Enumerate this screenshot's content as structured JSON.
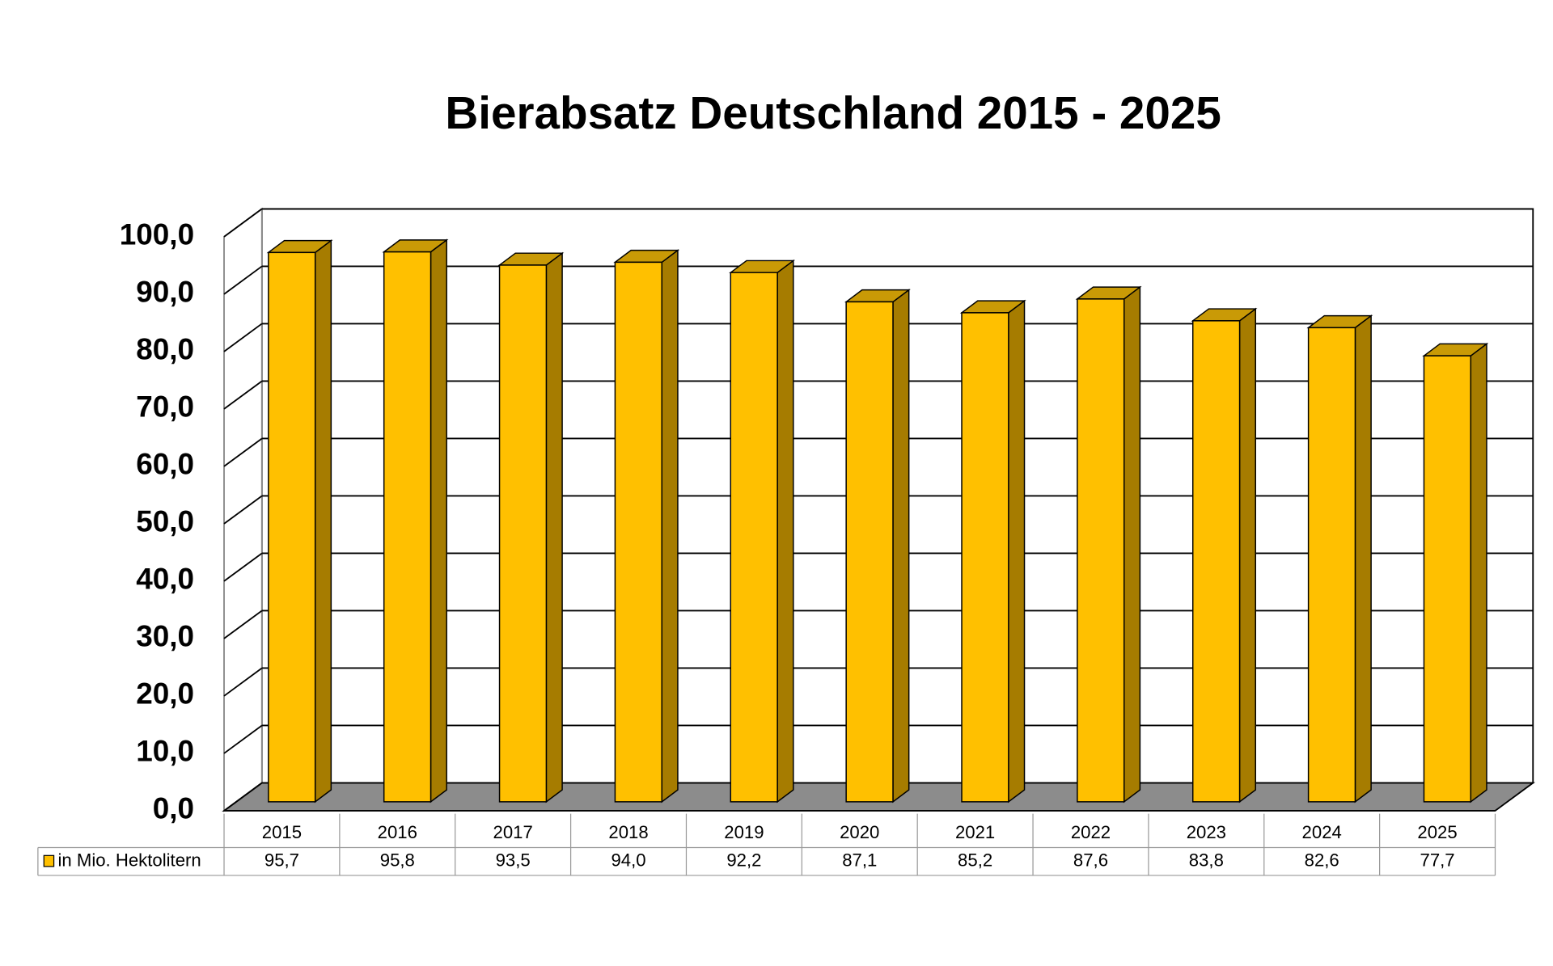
{
  "chart_data": {
    "type": "bar",
    "title": "Bierabsatz Deutschland 2015 - 2025",
    "categories": [
      "2015",
      "2016",
      "2017",
      "2018",
      "2019",
      "2020",
      "2021",
      "2022",
      "2023",
      "2024",
      "2025"
    ],
    "series": [
      {
        "name": "in Mio. Hektolitern",
        "color": "#FFC000",
        "values": [
          95.7,
          95.8,
          93.5,
          94.0,
          92.2,
          87.1,
          85.2,
          87.6,
          83.8,
          82.6,
          77.7
        ],
        "value_labels": [
          "95,7",
          "95,8",
          "93,5",
          "94,0",
          "92,2",
          "87,1",
          "85,2",
          "87,6",
          "83,8",
          "82,6",
          "77,7"
        ]
      }
    ],
    "ylim": [
      0,
      100
    ],
    "yticks": [
      {
        "value": 0,
        "label": "0,0"
      },
      {
        "value": 10,
        "label": "10,0"
      },
      {
        "value": 20,
        "label": "20,0"
      },
      {
        "value": 30,
        "label": "30,0"
      },
      {
        "value": 40,
        "label": "40,0"
      },
      {
        "value": 50,
        "label": "50,0"
      },
      {
        "value": 60,
        "label": "60,0"
      },
      {
        "value": 70,
        "label": "70,0"
      },
      {
        "value": 80,
        "label": "80,0"
      },
      {
        "value": 90,
        "label": "90,0"
      },
      {
        "value": 100,
        "label": "100,0"
      }
    ],
    "grid": true
  }
}
